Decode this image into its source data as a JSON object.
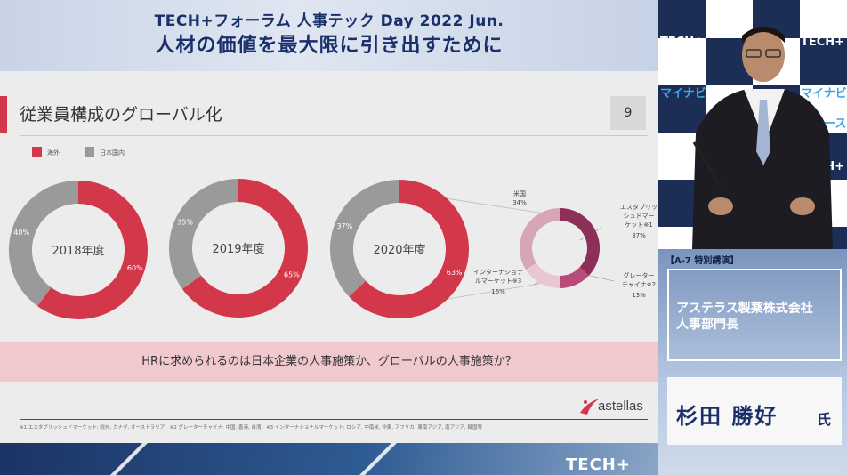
{
  "header": {
    "line1": "TECH+フォーラム 人事テック Day 2022 Jun.",
    "line2": "人材の価値を最大限に引き出すために"
  },
  "slide": {
    "title": "従業員構成のグローバル化",
    "page_number": "9",
    "legend": [
      {
        "label": "海外",
        "color": "#d3374a"
      },
      {
        "label": "日本国内",
        "color": "#9a9a9a"
      }
    ],
    "banner": "HRに求められるのは日本企業の人事施策か、グローバルの人事施策か？",
    "logo": "astellas",
    "footnote": "※1 エスタブリッシュドマーケット: 欧州, カナダ, オーストラリア　※2 グレーターチャイナ: 中国, 香港, 台湾　※3 インターナショナルマーケット: ロシア, 中南米, 中東, アフリカ, 東南アジア, 南アジア, 韓国等"
  },
  "chart_data": [
    {
      "type": "pie",
      "title": "2018年度",
      "categories": [
        "海外",
        "日本国内"
      ],
      "values": [
        60,
        40
      ],
      "labels": [
        "60%",
        "40%"
      ]
    },
    {
      "type": "pie",
      "title": "2019年度",
      "categories": [
        "海外",
        "日本国内"
      ],
      "values": [
        65,
        35
      ],
      "labels": [
        "65%",
        "35%"
      ]
    },
    {
      "type": "pie",
      "title": "2020年度",
      "categories": [
        "海外",
        "日本国内"
      ],
      "values": [
        63,
        37
      ],
      "labels": [
        "63%",
        "37%"
      ]
    },
    {
      "type": "pie",
      "title": "",
      "categories": [
        "エスタブリッシュドマーケット※1",
        "グレーターチャイナ※2",
        "インターナショナルマーケット※3",
        "米国"
      ],
      "values": [
        37,
        13,
        16,
        34
      ],
      "labels": [
        "37%",
        "13%",
        "16%",
        "34%"
      ],
      "colors": [
        "#8e2f57",
        "#b84b7a",
        "#e8c6d2",
        "#d6a6b8"
      ]
    }
  ],
  "breakdown_labels": {
    "us_name": "米国",
    "us_value": "34%",
    "est_line1": "エスタブリッ",
    "est_line2": "シュドマー",
    "est_line3": "ケット※1",
    "est_value": "37%",
    "gc_line1": "グレーター",
    "gc_line2": "チャイナ※2",
    "gc_value": "13%",
    "intl_line1": "インターナショナ",
    "intl_line2": "ルマーケット※3",
    "intl_value": "16%"
  },
  "bottom_logo": "TECH+",
  "speaker": {
    "session": "【A-7 特別講演】",
    "company_line1": "アステラス製薬株式会社",
    "company_line2": "人事部門長",
    "name": "杉田 勝好",
    "honorific": "氏"
  },
  "wall": {
    "logo_a": "TECH+",
    "logo_b": "マイナビ",
    "logo_c": "ニュース"
  }
}
